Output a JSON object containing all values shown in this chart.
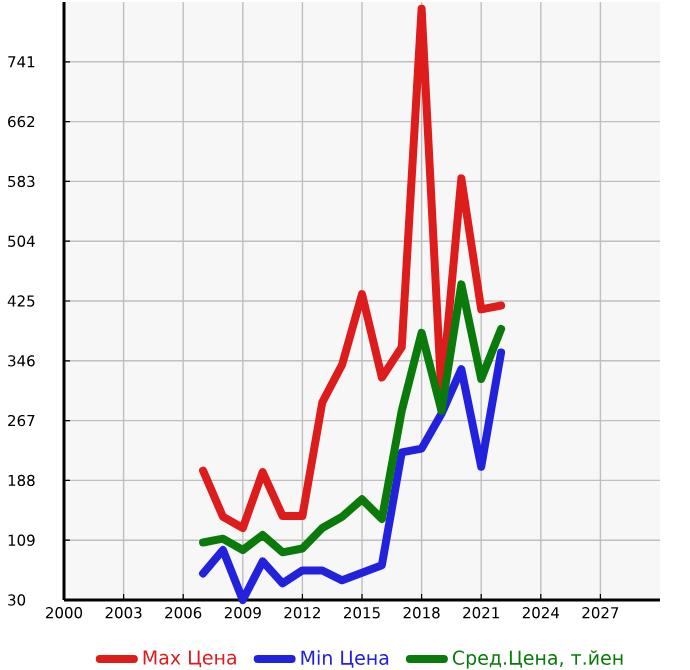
{
  "chart_data": {
    "type": "line",
    "x": [
      2007,
      2008,
      2009,
      2010,
      2011,
      2012,
      2013,
      2014,
      2015,
      2016,
      2017,
      2018,
      2019,
      2020,
      2021,
      2022
    ],
    "series": [
      {
        "name": "Max Цена",
        "color": "#dd1c1c",
        "values": [
          201,
          140,
          125,
          199,
          141,
          141,
          291,
          341,
          434,
          324,
          364,
          811,
          300,
          587,
          414,
          419
        ]
      },
      {
        "name": "Min Цена",
        "color": "#2222dd",
        "values": [
          65,
          96,
          30,
          81,
          52,
          69,
          69,
          56,
          66,
          76,
          225,
          230,
          276,
          335,
          206,
          357
        ]
      },
      {
        "name": "Сред.Цена, т.йен",
        "color": "#0a7a0a",
        "values": [
          106,
          111,
          96,
          116,
          93,
          98,
          125,
          140,
          163,
          137,
          280,
          383,
          280,
          447,
          322,
          388
        ]
      }
    ],
    "xlim": [
      2000,
      2030
    ],
    "xticks": [
      2000,
      2003,
      2006,
      2009,
      2012,
      2015,
      2018,
      2021,
      2024,
      2027
    ],
    "ylim": [
      30,
      820
    ],
    "yticks": [
      30,
      109,
      188,
      267,
      346,
      425,
      504,
      583,
      662,
      741
    ],
    "grid": true,
    "legend": "bottom",
    "marker": "none",
    "line_style": "solid"
  }
}
